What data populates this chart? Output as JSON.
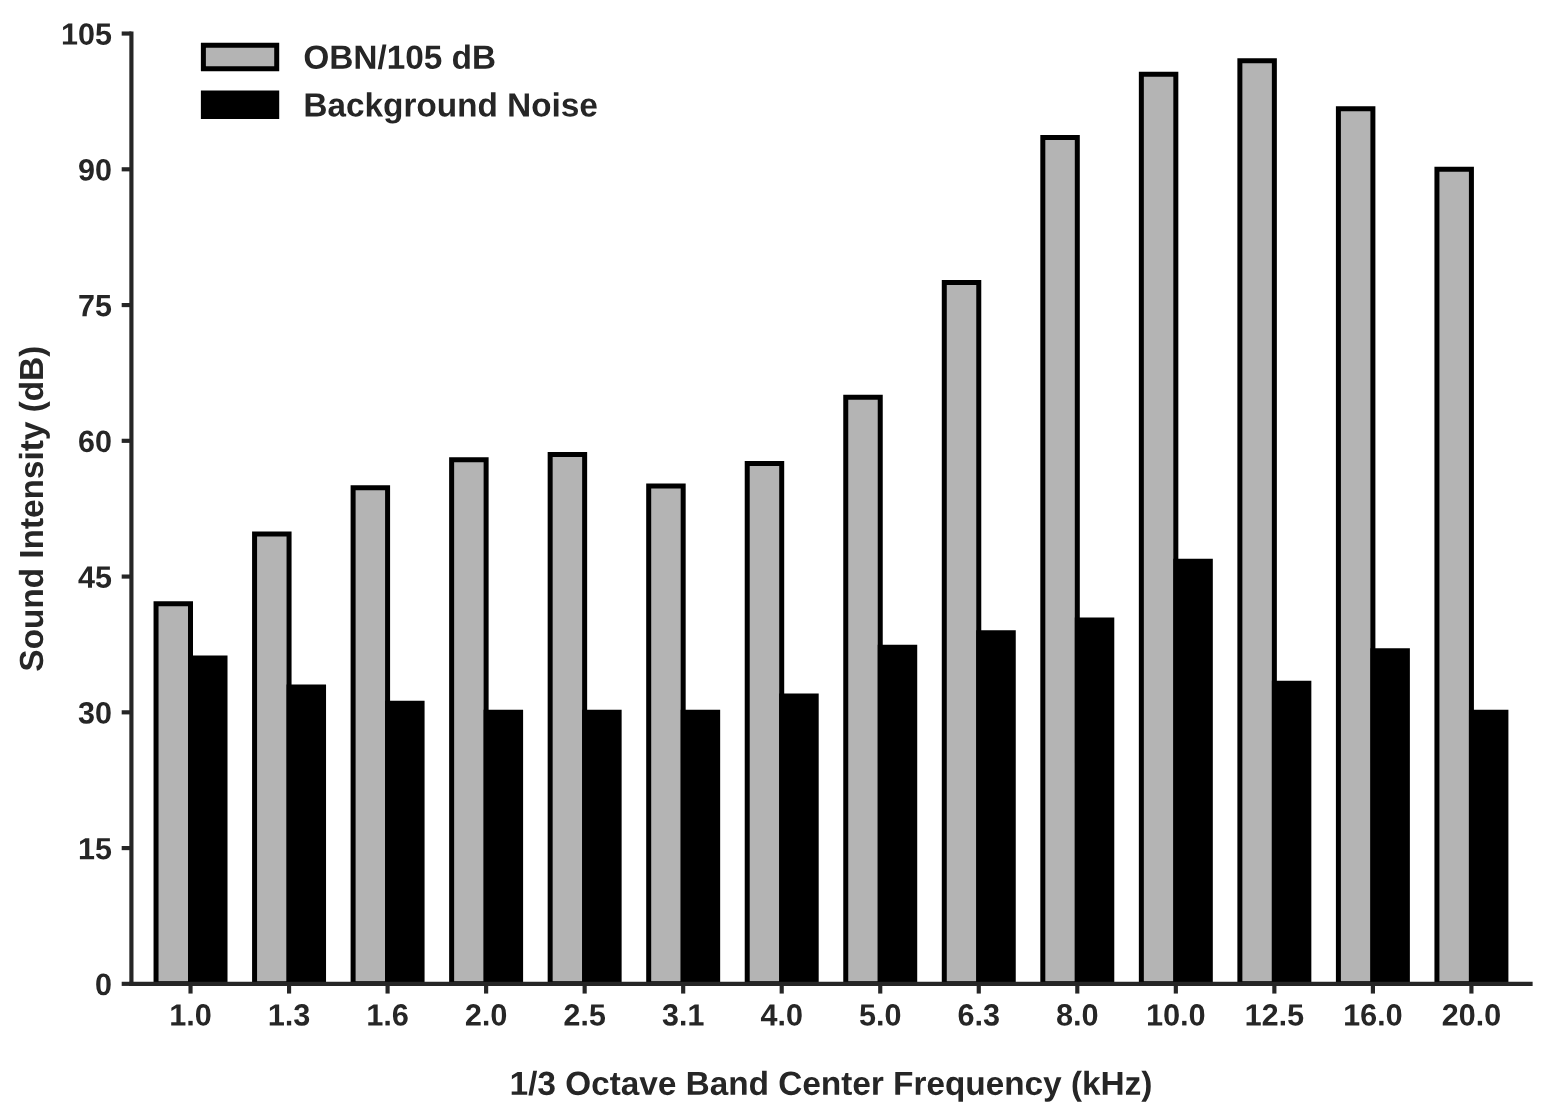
{
  "chart_data": {
    "type": "bar",
    "xlabel": "1/3 Octave Band Center Frequency (kHz)",
    "ylabel": "Sound Intensity (dB)",
    "categories": [
      "1.0",
      "1.3",
      "1.6",
      "2.0",
      "2.5",
      "3.1",
      "4.0",
      "5.0",
      "6.3",
      "8.0",
      "10.0",
      "12.5",
      "16.0",
      "20.0"
    ],
    "series": [
      {
        "name": "OBN/105 dB",
        "color": "#b4b4b4",
        "values": [
          42,
          49.7,
          54.8,
          57.9,
          58.5,
          55,
          57.5,
          64.8,
          77.5,
          93.5,
          100.5,
          102,
          96.7,
          90
        ]
      },
      {
        "name": "Background Noise",
        "color": "#000000",
        "values": [
          36,
          32.8,
          31,
          30,
          30,
          30,
          31.8,
          37.2,
          38.8,
          40.2,
          46.7,
          33.2,
          36.8,
          30
        ]
      }
    ],
    "ylim": [
      0,
      105
    ],
    "yticks": [
      0,
      15,
      30,
      45,
      60,
      75,
      90,
      105
    ],
    "grid": false,
    "legend": "top left"
  }
}
